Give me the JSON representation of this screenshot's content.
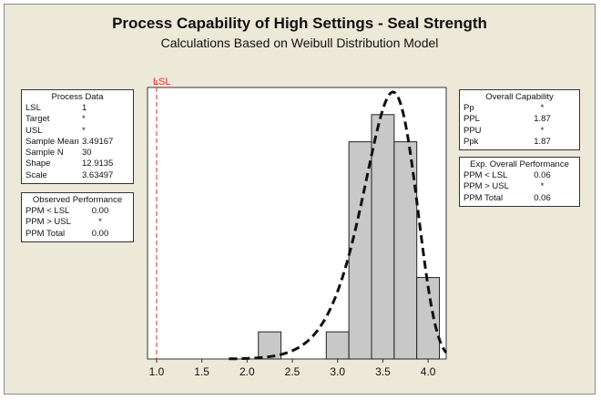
{
  "title": "Process Capability of High Settings - Seal Strength",
  "subtitle": "Calculations Based on Weibull Distribution Model",
  "process_data": {
    "heading": "Process Data",
    "rows": [
      {
        "label": "LSL",
        "value": "1"
      },
      {
        "label": "Target",
        "value": "*"
      },
      {
        "label": "USL",
        "value": "*"
      },
      {
        "label": "Sample Mean",
        "value": "3.49167"
      },
      {
        "label": "Sample N",
        "value": "30"
      },
      {
        "label": "Shape",
        "value": "12.9135"
      },
      {
        "label": "Scale",
        "value": "3.63497"
      }
    ]
  },
  "observed_performance": {
    "heading": "Observed Performance",
    "rows": [
      {
        "label": "PPM < LSL",
        "value": "0.00"
      },
      {
        "label": "PPM > USL",
        "value": "*"
      },
      {
        "label": "PPM Total",
        "value": "0.00"
      }
    ]
  },
  "overall_capability": {
    "heading": "Overall Capability",
    "rows": [
      {
        "label": "Pp",
        "value": "*"
      },
      {
        "label": "PPL",
        "value": "1.87"
      },
      {
        "label": "PPU",
        "value": "*"
      },
      {
        "label": "Ppk",
        "value": "1.87"
      }
    ]
  },
  "exp_overall_performance": {
    "heading": "Exp. Overall Performance",
    "rows": [
      {
        "label": "PPM < LSL",
        "value": "0.06"
      },
      {
        "label": "PPM > USL",
        "value": "*"
      },
      {
        "label": "PPM Total",
        "value": "0.06"
      }
    ]
  },
  "chart_data": {
    "type": "bar",
    "xlim": [
      0.9,
      4.2
    ],
    "ylim": [
      0,
      10
    ],
    "xticks": [
      "1.0",
      "1.5",
      "2.0",
      "2.5",
      "3.0",
      "3.5",
      "4.0"
    ],
    "bin_width": 0.25,
    "bins": [
      {
        "start": 2.125,
        "count": 1
      },
      {
        "start": 2.875,
        "count": 1
      },
      {
        "start": 3.125,
        "count": 8
      },
      {
        "start": 3.375,
        "count": 9
      },
      {
        "start": 3.625,
        "count": 8
      },
      {
        "start": 3.875,
        "count": 3
      }
    ],
    "lsl": {
      "label": "LSL",
      "value": 1.0,
      "color": "#d9322a"
    },
    "fit_curve": {
      "distribution": "weibull",
      "shape": 12.9135,
      "scale": 3.63497,
      "n": 30
    },
    "bar_fill": "#c8c8c8",
    "grid": false
  }
}
